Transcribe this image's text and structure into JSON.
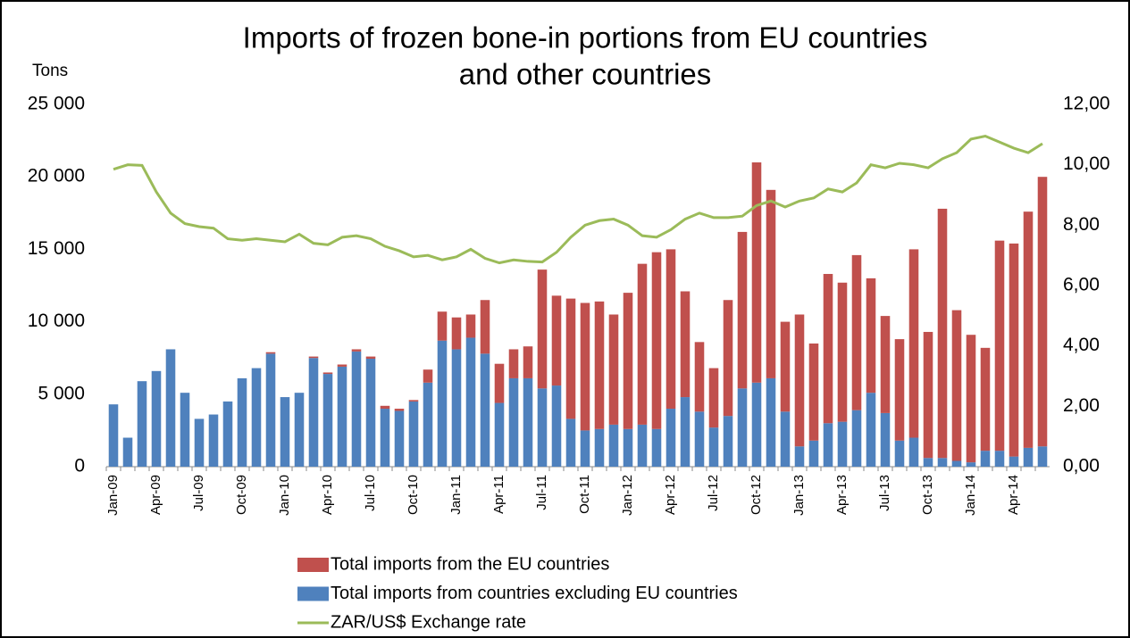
{
  "chart_data": {
    "type": "bar",
    "stacked": true,
    "title": [
      "Imports of frozen bone-in portions from EU countries",
      "and other countries"
    ],
    "y_label": "Tons",
    "categories": [
      "Jan-09",
      null,
      null,
      "Apr-09",
      null,
      null,
      "Jul-09",
      null,
      null,
      "Oct-09",
      null,
      null,
      "Jan-10",
      null,
      null,
      "Apr-10",
      null,
      null,
      "Jul-10",
      null,
      null,
      "Oct-10",
      null,
      null,
      "Jan-11",
      null,
      null,
      "Apr-11",
      null,
      null,
      "Jul-11",
      null,
      null,
      "Oct-11",
      null,
      null,
      "Jan-12",
      null,
      null,
      "Apr-12",
      null,
      null,
      "Jul-12",
      null,
      null,
      "Oct-12",
      null,
      null,
      "Jan-13",
      null,
      null,
      "Apr-13",
      null,
      null,
      "Jul-13",
      null,
      null,
      "Oct-13",
      null,
      null,
      "Jan-14",
      null,
      null,
      "Apr-14",
      null,
      null
    ],
    "series": [
      {
        "name": "Total imports from countries excluding EU countries",
        "color": "#4f81bd",
        "values": [
          4300,
          2000,
          5900,
          6600,
          8100,
          5100,
          3300,
          3600,
          4500,
          6100,
          6800,
          7800,
          4800,
          5100,
          7500,
          6400,
          6900,
          7950,
          7450,
          4000,
          3850,
          4500,
          5800,
          8700,
          8100,
          8900,
          7800,
          4400,
          6100,
          6100,
          5400,
          5600,
          3300,
          2500,
          2600,
          2900,
          2600,
          2900,
          2600,
          4000,
          4800,
          3800,
          2700,
          3500,
          5400,
          5800,
          6100,
          3800,
          1400,
          1800,
          3000,
          3100,
          3900,
          5100,
          3700,
          1800,
          2000,
          600,
          600,
          400,
          300,
          1100,
          1100,
          700,
          1300,
          1400
        ]
      },
      {
        "name": "Total imports from the EU countries",
        "color": "#c0504d",
        "values": [
          0,
          0,
          0,
          0,
          0,
          0,
          0,
          0,
          0,
          0,
          0,
          100,
          0,
          0,
          100,
          100,
          150,
          150,
          150,
          200,
          150,
          100,
          900,
          2000,
          2200,
          1600,
          3700,
          2700,
          2000,
          2200,
          8200,
          6200,
          8300,
          8800,
          8800,
          7600,
          9400,
          11100,
          12200,
          11000,
          7300,
          4800,
          4100,
          8000,
          10800,
          15200,
          13000,
          6200,
          9100,
          6700,
          10300,
          9600,
          10700,
          7900,
          6700,
          7000,
          13000,
          8700,
          17200,
          10400,
          8800,
          7100,
          14500,
          14700,
          16300,
          18600
        ]
      },
      {
        "name": "ZAR/US$ Exchange rate",
        "color": "#9bbb59",
        "type": "line",
        "axis": "y2",
        "values": [
          9.85,
          10.0,
          9.98,
          9.1,
          8.4,
          8.05,
          7.95,
          7.9,
          7.55,
          7.5,
          7.55,
          7.5,
          7.45,
          7.7,
          7.4,
          7.35,
          7.6,
          7.65,
          7.55,
          7.3,
          7.15,
          6.95,
          7.0,
          6.85,
          6.95,
          7.2,
          6.9,
          6.75,
          6.85,
          6.8,
          6.78,
          7.1,
          7.6,
          8.0,
          8.15,
          8.2,
          8.0,
          7.65,
          7.6,
          7.85,
          8.2,
          8.4,
          8.25,
          8.25,
          8.3,
          8.65,
          8.8,
          8.6,
          8.8,
          8.9,
          9.2,
          9.1,
          9.4,
          10.0,
          9.9,
          10.05,
          10.0,
          9.9,
          10.2,
          10.4,
          10.85,
          10.95,
          10.75,
          10.55,
          10.4,
          10.7
        ]
      }
    ],
    "legend_order": [
      1,
      0,
      2
    ],
    "ylim": [
      0,
      25000
    ],
    "yticks": [
      0,
      {
        "value": 5000,
        "label": "5 000"
      },
      {
        "value": 10000,
        "label": "10 000"
      },
      {
        "value": 15000,
        "label": "15 000"
      },
      {
        "value": 20000,
        "label": "20 000"
      },
      {
        "value": 25000,
        "label": "25 000"
      }
    ],
    "y2lim": [
      0,
      12
    ],
    "y2ticks": [
      {
        "value": 0,
        "label": "0,00"
      },
      {
        "value": 2,
        "label": "2,00"
      },
      {
        "value": 4,
        "label": "4,00"
      },
      {
        "value": 6,
        "label": "6,00"
      },
      {
        "value": 8,
        "label": "8,00"
      },
      {
        "value": 10,
        "label": "10,00"
      },
      {
        "value": 12,
        "label": "12,00"
      }
    ],
    "grid": false
  }
}
